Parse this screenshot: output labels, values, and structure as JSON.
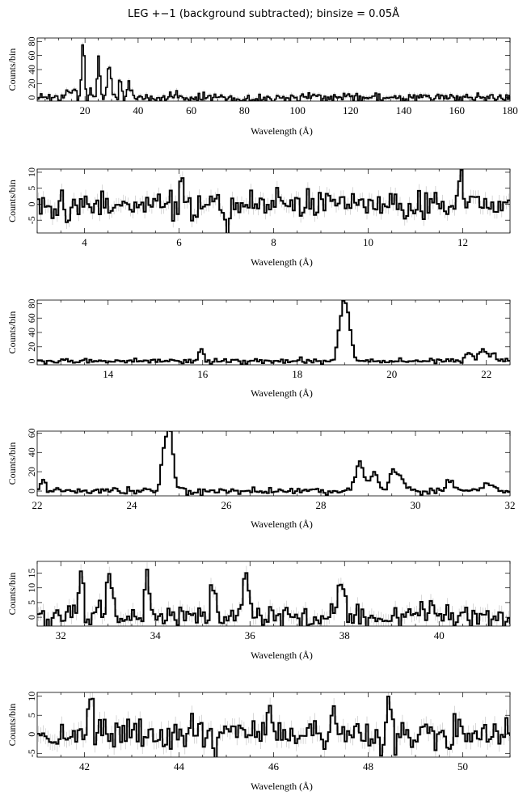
{
  "page_title": "LEG +−1 (background subtracted); binsize = 0.05Å",
  "chart_data": [
    {
      "type": "line",
      "xlabel": "Wavelength (Å)",
      "ylabel": "Counts/bin",
      "xlim": [
        2,
        180
      ],
      "ylim": [
        -5,
        85
      ],
      "xticks": [
        20,
        40,
        60,
        80,
        100,
        120,
        140,
        160,
        180
      ],
      "yticks": [
        0,
        20,
        40,
        60,
        80
      ],
      "noise": 6,
      "seed": 1,
      "step": 0.6,
      "peaks": [
        [
          19,
          84,
          0.5
        ],
        [
          24.8,
          60,
          0.5
        ],
        [
          21.7,
          17,
          0.4
        ],
        [
          29,
          32,
          0.6
        ],
        [
          28.4,
          22,
          0.5
        ],
        [
          33,
          26,
          0.6
        ],
        [
          36.5,
          18,
          0.8
        ],
        [
          13.5,
          9,
          1
        ],
        [
          16,
          14,
          0.5
        ]
      ],
      "series": [
        {
          "values": null
        }
      ]
    },
    {
      "type": "line",
      "xlabel": "Wavelength (Å)",
      "ylabel": "Counts/bin",
      "xlim": [
        3,
        13
      ],
      "ylim": [
        -9,
        11
      ],
      "xticks": [
        4,
        6,
        8,
        10,
        12
      ],
      "yticks": [
        -5,
        0,
        5,
        10
      ],
      "noise": 3.5,
      "seed": 7,
      "step": 0.05,
      "peaks": [
        [
          6.02,
          10,
          0.03
        ],
        [
          9.1,
          5,
          0.05
        ],
        [
          11.95,
          8,
          0.05
        ]
      ],
      "dips": [
        [
          7.0,
          -16,
          0.03
        ],
        [
          3.6,
          -8,
          0.03
        ]
      ],
      "series": [
        {
          "values": null
        }
      ]
    },
    {
      "type": "line",
      "xlabel": "Wavelength (Å)",
      "ylabel": "Counts/bin",
      "xlim": [
        12.5,
        22.5
      ],
      "ylim": [
        -5,
        85
      ],
      "xticks": [
        14,
        16,
        18,
        20,
        22
      ],
      "yticks": [
        0,
        20,
        40,
        60,
        80
      ],
      "noise": 3,
      "seed": 13,
      "step": 0.05,
      "peaks": [
        [
          18.97,
          84,
          0.07
        ],
        [
          18.85,
          22,
          0.05
        ],
        [
          19.1,
          30,
          0.05
        ],
        [
          15.95,
          18,
          0.05
        ],
        [
          21.6,
          14,
          0.06
        ],
        [
          21.9,
          18,
          0.08
        ],
        [
          22.1,
          12,
          0.05
        ]
      ],
      "series": [
        {
          "values": null
        }
      ]
    },
    {
      "type": "line",
      "xlabel": "Wavelength (Å)",
      "ylabel": "Counts/bin",
      "xlim": [
        22,
        32
      ],
      "ylim": [
        -5,
        62
      ],
      "xticks": [
        22,
        24,
        26,
        28,
        30,
        32
      ],
      "yticks": [
        0,
        20,
        40,
        60
      ],
      "noise": 3,
      "seed": 21,
      "step": 0.05,
      "peaks": [
        [
          24.78,
          63,
          0.07
        ],
        [
          24.65,
          35,
          0.06
        ],
        [
          28.8,
          30,
          0.09
        ],
        [
          29.1,
          20,
          0.08
        ],
        [
          29.5,
          22,
          0.08
        ],
        [
          29.7,
          12,
          0.08
        ],
        [
          30.7,
          12,
          0.06
        ],
        [
          31.5,
          8,
          0.1
        ],
        [
          22.1,
          14,
          0.05
        ]
      ],
      "series": [
        {
          "values": null
        }
      ]
    },
    {
      "type": "line",
      "xlabel": "Wavelength (Å)",
      "ylabel": "Counts/bin",
      "xlim": [
        31.5,
        41.5
      ],
      "ylim": [
        -3,
        19
      ],
      "xticks": [
        32,
        34,
        36,
        38,
        40
      ],
      "yticks": [
        0,
        5,
        10,
        15
      ],
      "noise": 4,
      "seed": 33,
      "step": 0.05,
      "peaks": [
        [
          32.4,
          16,
          0.05
        ],
        [
          33.0,
          14,
          0.06
        ],
        [
          33.8,
          15,
          0.05
        ],
        [
          35.2,
          12,
          0.05
        ],
        [
          35.9,
          18,
          0.05
        ],
        [
          37.9,
          13,
          0.06
        ]
      ],
      "series": [
        {
          "values": null
        }
      ]
    },
    {
      "type": "line",
      "xlabel": "Wavelength (Å)",
      "ylabel": "Counts/bin",
      "xlim": [
        41,
        51
      ],
      "ylim": [
        -6,
        11
      ],
      "xticks": [
        42,
        44,
        46,
        48,
        50
      ],
      "yticks": [
        -5,
        0,
        5,
        10
      ],
      "noise": 3.5,
      "seed": 47,
      "step": 0.05,
      "peaks": [
        [
          42.1,
          10,
          0.04
        ],
        [
          45.9,
          11,
          0.04
        ],
        [
          47.25,
          9,
          0.04
        ],
        [
          48.4,
          8,
          0.04
        ]
      ],
      "dips": [
        [
          44.75,
          -10,
          0.03
        ]
      ],
      "series": [
        {
          "values": null
        }
      ]
    }
  ]
}
